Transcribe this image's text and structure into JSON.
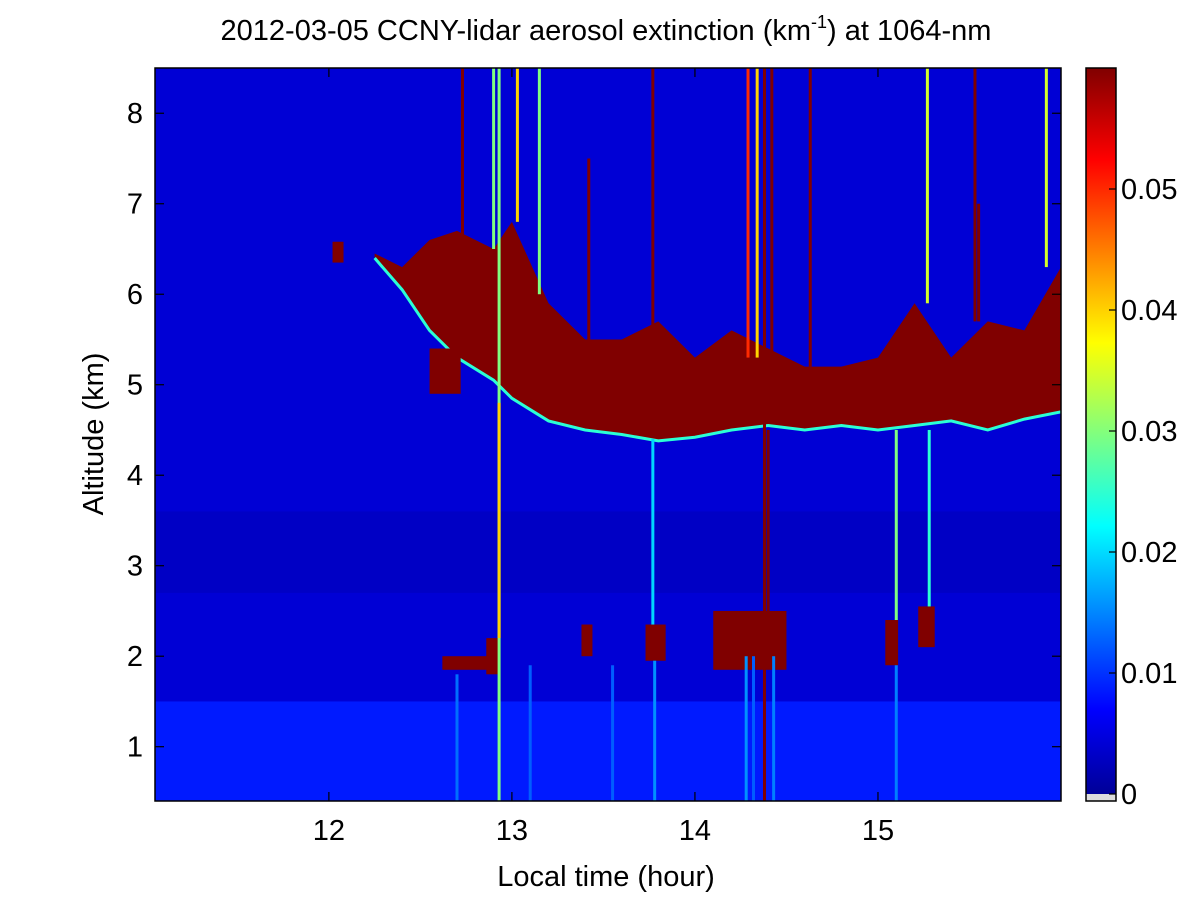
{
  "chart_data": {
    "type": "heatmap",
    "title_main": "2012-03-05 CCNY-lidar aerosol extinction (km",
    "title_sup": "-1",
    "title_tail": ") at 1064-nm",
    "xlabel": "Local time (hour)",
    "ylabel": "Altitude (km)",
    "xlim": [
      11.05,
      16.0
    ],
    "ylim": [
      0.4,
      8.5
    ],
    "xticks": [
      12,
      13,
      14,
      15
    ],
    "yticks": [
      1,
      2,
      3,
      4,
      5,
      6,
      7,
      8
    ],
    "colorbar": {
      "colormap": "jet",
      "clim": [
        0,
        0.06
      ],
      "ticks": [
        0,
        0.01,
        0.02,
        0.03,
        0.04,
        0.05
      ]
    },
    "background_extinction": {
      "boundary_layer_top_km": 1.5,
      "boundary_layer_value": 0.009,
      "free_troposphere_value": 0.005,
      "aerosol_layer_km": [
        2.7,
        3.6
      ]
    },
    "cloud_base_km": [
      [
        12.25,
        6.4
      ],
      [
        12.4,
        6.05
      ],
      [
        12.55,
        5.6
      ],
      [
        12.7,
        5.3
      ],
      [
        12.9,
        5.05
      ],
      [
        13.0,
        4.85
      ],
      [
        13.2,
        4.6
      ],
      [
        13.4,
        4.5
      ],
      [
        13.6,
        4.45
      ],
      [
        13.8,
        4.38
      ],
      [
        14.0,
        4.42
      ],
      [
        14.2,
        4.5
      ],
      [
        14.4,
        4.55
      ],
      [
        14.6,
        4.5
      ],
      [
        14.8,
        4.55
      ],
      [
        15.0,
        4.5
      ],
      [
        15.2,
        4.55
      ],
      [
        15.4,
        4.6
      ],
      [
        15.6,
        4.5
      ],
      [
        15.8,
        4.62
      ],
      [
        16.0,
        4.7
      ]
    ],
    "cloud_top_km": [
      [
        12.25,
        6.45
      ],
      [
        12.4,
        6.3
      ],
      [
        12.55,
        6.6
      ],
      [
        12.7,
        6.7
      ],
      [
        12.9,
        6.5
      ],
      [
        13.0,
        6.8
      ],
      [
        13.2,
        5.9
      ],
      [
        13.4,
        5.5
      ],
      [
        13.6,
        5.5
      ],
      [
        13.8,
        5.7
      ],
      [
        14.0,
        5.3
      ],
      [
        14.2,
        5.6
      ],
      [
        14.4,
        5.4
      ],
      [
        14.6,
        5.2
      ],
      [
        14.8,
        5.2
      ],
      [
        15.0,
        5.3
      ],
      [
        15.2,
        5.9
      ],
      [
        15.4,
        5.3
      ],
      [
        15.6,
        5.7
      ],
      [
        15.8,
        5.6
      ],
      [
        16.0,
        6.3
      ]
    ],
    "low_clouds": [
      {
        "x0": 12.62,
        "x1": 12.9,
        "base": 1.85,
        "top": 2.0
      },
      {
        "x0": 12.86,
        "x1": 12.93,
        "base": 1.8,
        "top": 2.2
      },
      {
        "x0": 13.38,
        "x1": 13.44,
        "base": 2.0,
        "top": 2.35
      },
      {
        "x0": 13.73,
        "x1": 13.84,
        "base": 1.95,
        "top": 2.35
      },
      {
        "x0": 14.1,
        "x1": 14.5,
        "base": 1.85,
        "top": 2.5
      },
      {
        "x0": 15.04,
        "x1": 15.11,
        "base": 1.9,
        "top": 2.4
      },
      {
        "x0": 15.22,
        "x1": 15.31,
        "base": 2.1,
        "top": 2.55
      }
    ],
    "isolated_patches": [
      {
        "x0": 12.02,
        "x1": 12.08,
        "base": 6.35,
        "top": 6.58
      },
      {
        "x0": 12.55,
        "x1": 12.72,
        "base": 4.9,
        "top": 5.4
      }
    ],
    "vertical_streaks": [
      {
        "x": 12.93,
        "y0": 0.4,
        "y1": 8.5,
        "v": 0.03
      },
      {
        "x": 12.73,
        "y0": 5.4,
        "y1": 8.5,
        "v": 0.07
      },
      {
        "x": 12.9,
        "y0": 6.5,
        "y1": 8.5,
        "v": 0.03
      },
      {
        "x": 13.03,
        "y0": 6.8,
        "y1": 8.5,
        "v": 0.04
      },
      {
        "x": 13.15,
        "y0": 6.0,
        "y1": 8.5,
        "v": 0.03
      },
      {
        "x": 13.77,
        "y0": 5.2,
        "y1": 8.5,
        "v": 0.07
      },
      {
        "x": 13.42,
        "y0": 5.5,
        "y1": 7.5,
        "v": 0.07
      },
      {
        "x": 14.29,
        "y0": 5.3,
        "y1": 8.5,
        "v": 0.05
      },
      {
        "x": 14.34,
        "y0": 5.3,
        "y1": 8.5,
        "v": 0.04
      },
      {
        "x": 14.38,
        "y0": 0.4,
        "y1": 8.5,
        "v": 0.07
      },
      {
        "x": 14.42,
        "y0": 5.2,
        "y1": 8.5,
        "v": 0.07
      },
      {
        "x": 14.28,
        "y0": 0.4,
        "y1": 2.0,
        "v": 0.016
      },
      {
        "x": 14.32,
        "y0": 0.4,
        "y1": 2.0,
        "v": 0.013
      },
      {
        "x": 14.43,
        "y0": 0.4,
        "y1": 2.0,
        "v": 0.015
      },
      {
        "x": 14.63,
        "y0": 5.2,
        "y1": 8.5,
        "v": 0.07
      },
      {
        "x": 15.1,
        "y0": 0.4,
        "y1": 1.9,
        "v": 0.015
      },
      {
        "x": 15.1,
        "y0": 2.4,
        "y1": 4.5,
        "v": 0.03
      },
      {
        "x": 15.27,
        "y0": 5.9,
        "y1": 8.5,
        "v": 0.035
      },
      {
        "x": 15.28,
        "y0": 2.55,
        "y1": 4.5,
        "v": 0.025
      },
      {
        "x": 15.53,
        "y0": 5.7,
        "y1": 8.5,
        "v": 0.07
      },
      {
        "x": 15.55,
        "y0": 5.7,
        "y1": 7.0,
        "v": 0.07
      },
      {
        "x": 15.92,
        "y0": 6.3,
        "y1": 8.5,
        "v": 0.035
      },
      {
        "x": 12.93,
        "y0": 2.2,
        "y1": 4.8,
        "v": 0.04
      },
      {
        "x": 13.77,
        "y0": 2.35,
        "y1": 4.4,
        "v": 0.02
      },
      {
        "x": 14.4,
        "y0": 2.5,
        "y1": 4.5,
        "v": 0.06
      }
    ],
    "bright_lower_streaks": [
      {
        "x": 13.1,
        "y0": 0.4,
        "y1": 1.9,
        "v": 0.013
      },
      {
        "x": 13.55,
        "y0": 0.4,
        "y1": 1.9,
        "v": 0.013
      },
      {
        "x": 13.78,
        "y0": 0.4,
        "y1": 1.95,
        "v": 0.016
      },
      {
        "x": 12.7,
        "y0": 0.4,
        "y1": 1.8,
        "v": 0.014
      }
    ]
  }
}
